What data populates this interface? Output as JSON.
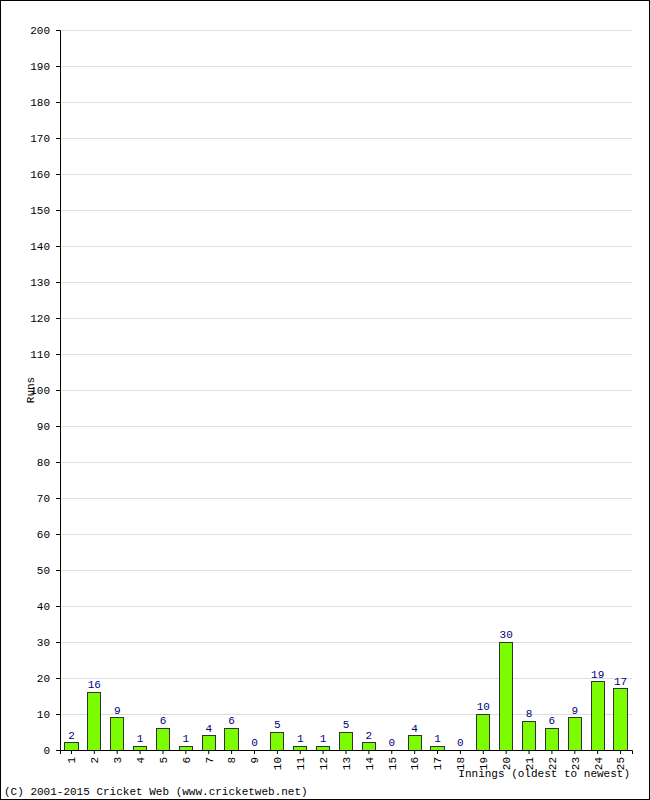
{
  "chart_data": {
    "type": "bar",
    "x_label": "Innings (oldest to newest)",
    "y_label": "Runs",
    "annotations": [
      "(C) 2001-2015 Cricket Web (www.cricketweb.net)"
    ],
    "categories": [
      "1",
      "2",
      "3",
      "4",
      "5",
      "6",
      "7",
      "8",
      "9",
      "10",
      "11",
      "12",
      "13",
      "14",
      "15",
      "16",
      "17",
      "18",
      "19",
      "20",
      "21",
      "22",
      "23",
      "24",
      "25"
    ],
    "values": [
      2,
      16,
      9,
      1,
      6,
      1,
      4,
      6,
      0,
      5,
      1,
      1,
      5,
      2,
      0,
      4,
      1,
      0,
      10,
      30,
      8,
      6,
      9,
      19,
      17
    ],
    "color": "#7cfc00",
    "ylim": [
      0,
      200
    ],
    "yticks": [
      0,
      10,
      20,
      30,
      40,
      50,
      60,
      70,
      80,
      90,
      100,
      110,
      120,
      130,
      140,
      150,
      160,
      170,
      180,
      190,
      200
    ],
    "grid": true,
    "data_labels": true
  }
}
